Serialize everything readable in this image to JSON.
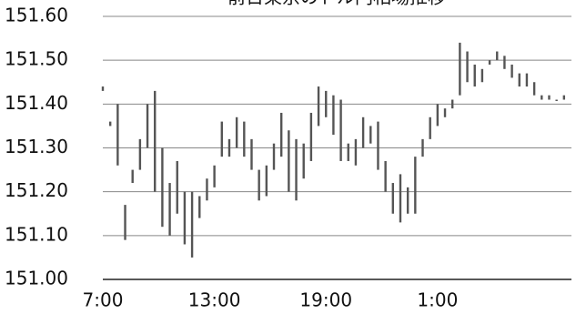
{
  "chart_data": {
    "type": "range_bar",
    "title": "前日東京のドル円相場推移",
    "x": [
      0,
      0.4,
      0.8,
      1.2,
      1.6,
      2,
      2.4,
      2.8,
      3.2,
      3.6,
      4,
      4.4,
      4.8,
      5.2,
      5.6,
      6,
      6.4,
      6.8,
      7.2,
      7.6,
      8,
      8.4,
      8.8,
      9.2,
      9.6,
      10,
      10.4,
      10.8,
      11.2,
      11.6,
      12,
      12.4,
      12.8,
      13.2,
      13.6,
      14,
      14.4,
      14.8,
      15.2,
      15.6,
      16,
      16.4,
      16.8,
      17.2,
      17.6,
      18,
      18.4,
      18.8,
      19.2,
      19.6,
      20,
      20.4,
      20.8,
      21.2,
      21.6,
      22,
      22.4,
      22.8,
      23.2,
      23.6,
      24,
      24.4,
      24.8
    ],
    "low": [
      151.43,
      151.35,
      151.26,
      151.09,
      151.22,
      151.25,
      151.3,
      151.2,
      151.12,
      151.1,
      151.15,
      151.08,
      151.05,
      151.14,
      151.18,
      151.21,
      151.28,
      151.28,
      151.3,
      151.28,
      151.25,
      151.18,
      151.19,
      151.25,
      151.28,
      151.2,
      151.18,
      151.23,
      151.27,
      151.35,
      151.37,
      151.33,
      151.27,
      151.27,
      151.26,
      151.3,
      151.31,
      151.25,
      151.2,
      151.15,
      151.13,
      151.15,
      151.15,
      151.28,
      151.32,
      151.35,
      151.37,
      151.39,
      151.42,
      151.45,
      151.44,
      151.45,
      151.49,
      151.5,
      151.48,
      151.46,
      151.44,
      151.44,
      151.42,
      151.41,
      151.41,
      151.41,
      151.41
    ],
    "high": [
      151.44,
      151.36,
      151.4,
      151.17,
      151.25,
      151.32,
      151.4,
      151.43,
      151.3,
      151.22,
      151.27,
      151.2,
      151.2,
      151.19,
      151.23,
      151.26,
      151.36,
      151.32,
      151.37,
      151.36,
      151.32,
      151.25,
      151.26,
      151.31,
      151.38,
      151.34,
      151.32,
      151.31,
      151.38,
      151.44,
      151.43,
      151.42,
      151.41,
      151.31,
      151.32,
      151.37,
      151.35,
      151.36,
      151.27,
      151.22,
      151.24,
      151.21,
      151.28,
      151.32,
      151.37,
      151.4,
      151.39,
      151.41,
      151.54,
      151.52,
      151.49,
      151.48,
      151.5,
      151.52,
      151.51,
      151.49,
      151.47,
      151.47,
      151.45,
      151.42,
      151.42,
      151.41,
      151.42
    ],
    "color": "#555555",
    "xlim": [
      0,
      25.2
    ],
    "xticks": [
      {
        "value": 0,
        "label": "7:00"
      },
      {
        "value": 6,
        "label": "13:00"
      },
      {
        "value": 12,
        "label": "19:00"
      },
      {
        "value": 18,
        "label": "1:00"
      }
    ],
    "ylim": [
      151.0,
      151.6
    ],
    "yticks": [
      {
        "value": 151.0,
        "label": "151.00"
      },
      {
        "value": 151.1,
        "label": "151.10"
      },
      {
        "value": 151.2,
        "label": "151.20"
      },
      {
        "value": 151.3,
        "label": "151.30"
      },
      {
        "value": 151.4,
        "label": "151.40"
      },
      {
        "value": 151.5,
        "label": "151.50"
      },
      {
        "value": 151.6,
        "label": "151.60"
      }
    ],
    "grid": true
  }
}
